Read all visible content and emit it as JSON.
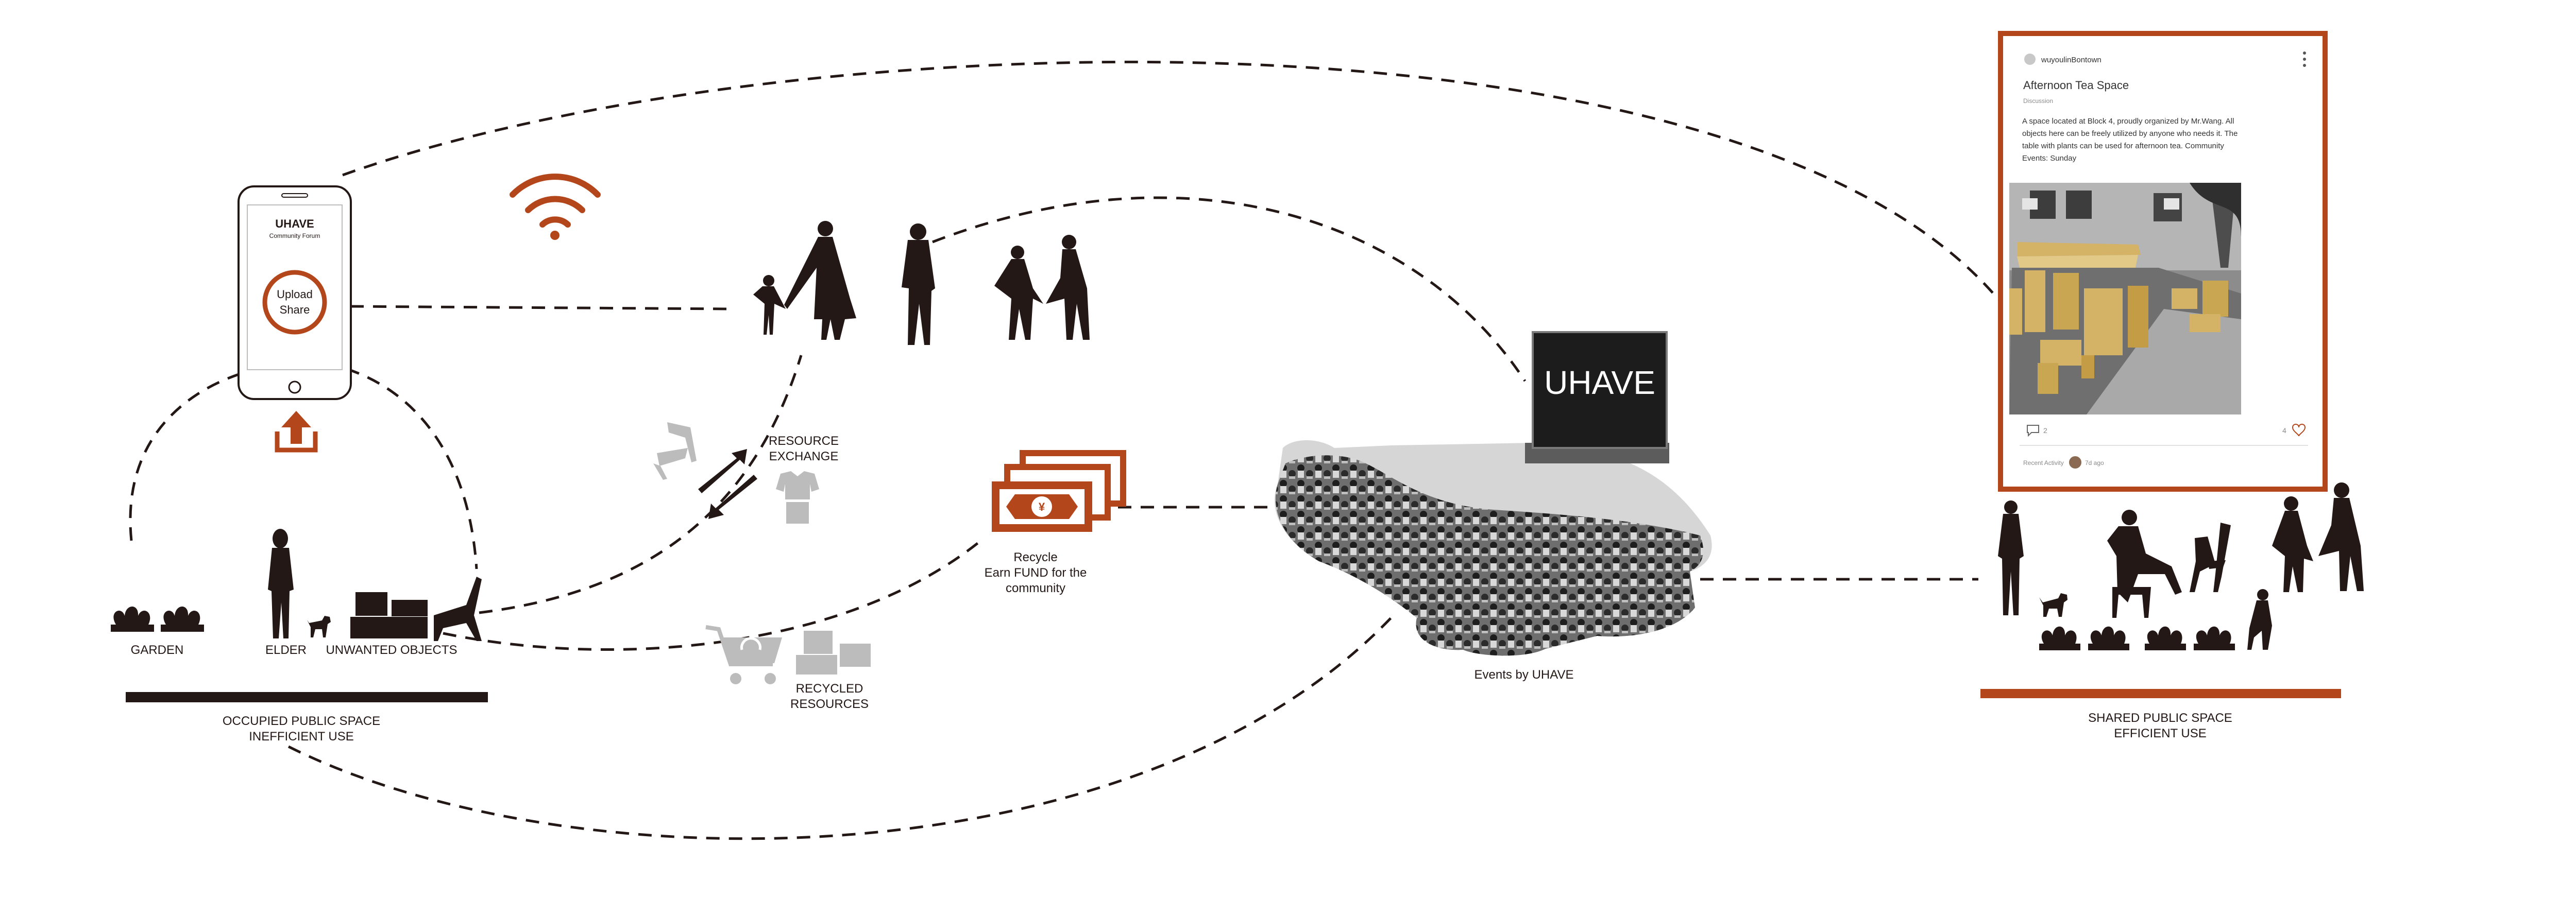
{
  "phone": {
    "title": "UHAVE",
    "subtitle": "Community Forum",
    "button_line1": "Upload",
    "button_line2": "Share"
  },
  "labels": {
    "garden": "GARDEN",
    "elder": "ELDER",
    "unwanted": "UNWANTED OBJECTS",
    "occupied_line1": "OCCUPIED PUBLIC SPACE",
    "occupied_line2": "INEFFICIENT USE",
    "resource_line1": "RESOURCE",
    "resource_line2": "EXCHANGE",
    "recycled_line1": "RECYCLED",
    "recycled_line2": "RESOURCES",
    "recycle_line1": "Recycle",
    "recycle_line2": "Earn FUND for the",
    "recycle_line3": "community",
    "events": "Events by UHAVE",
    "screen": "UHAVE",
    "shared_line1": "SHARED PUBLIC SPACE",
    "shared_line2": "EFFICIENT USE"
  },
  "post": {
    "username": "wuyoulinBontown",
    "title": "Afternoon Tea Space",
    "tag": "Discussion",
    "body_line1": "A space located at Block 4, proudly organized by Mr.Wang. All",
    "body_line2": "objects here can be freely utilized by anyone who needs it. The",
    "body_line3": "table with plants can be used for afternoon tea. Community",
    "body_line4": "Events: Sunday",
    "comments": "2",
    "likes": "4",
    "recent_label": "Recent Activity",
    "recent_time": "7d ago"
  },
  "icons": {
    "wifi": "wifi-icon",
    "upload": "upload-icon",
    "chair": "chair-icon",
    "shirt": "shirt-icon",
    "cart": "recycle-cart-icon",
    "money": "money-icon",
    "comment": "comment-icon",
    "heart": "heart-icon",
    "more": "more-dots-icon"
  },
  "colors": {
    "accent": "#b4461c",
    "ink": "#231815",
    "grey": "#bcbcbc",
    "gold": "#d4b266"
  }
}
